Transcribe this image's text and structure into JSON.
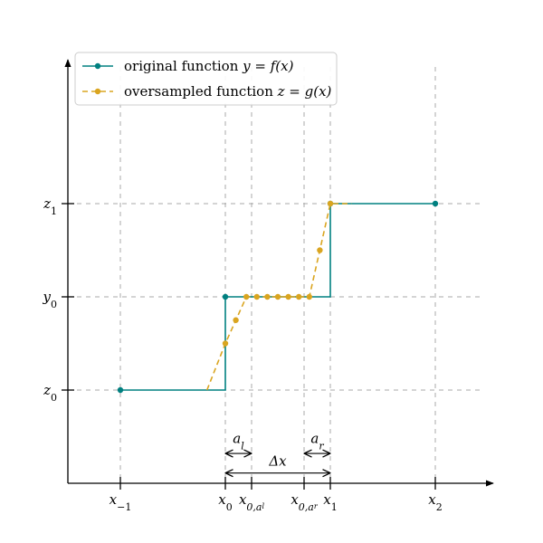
{
  "chart_data": {
    "type": "line",
    "xlim": [
      -2.0,
      5.6
    ],
    "ylim": [
      -1.0,
      3.0
    ],
    "grid": true,
    "legend_position": "top-left",
    "x_ticks": [
      {
        "value": -1.0,
        "base": "x",
        "sub": "−1",
        "subsub": ""
      },
      {
        "value": 1.0,
        "base": "x",
        "sub": "0",
        "subsub": ""
      },
      {
        "value": 1.5,
        "base": "x",
        "sub": "0,a",
        "subsub": "l"
      },
      {
        "value": 2.5,
        "base": "x",
        "sub": "0,a",
        "subsub": "r"
      },
      {
        "value": 3.0,
        "base": "x",
        "sub": "1",
        "subsub": ""
      },
      {
        "value": 5.0,
        "base": "x",
        "sub": "2",
        "subsub": ""
      }
    ],
    "y_ticks": [
      {
        "value": 0.0,
        "base": "z",
        "sub": "0"
      },
      {
        "value": 1.0,
        "base": "y",
        "sub": "0"
      },
      {
        "value": 2.0,
        "base": "z",
        "sub": "1"
      }
    ],
    "series": [
      {
        "name": "original function",
        "formula": "y = f(x)",
        "color": "#008080",
        "line_style": "solid",
        "line_x": [
          -1.0,
          1.0,
          1.0,
          3.0,
          3.0,
          5.0
        ],
        "line_y": [
          0.0,
          0.0,
          1.0,
          1.0,
          2.0,
          2.0
        ],
        "points_x": [
          -1.0,
          1.0,
          3.0,
          5.0
        ],
        "points_y": [
          0.0,
          1.0,
          2.0,
          2.0
        ]
      },
      {
        "name": "oversampled function",
        "formula": "z = g(x)",
        "color": "#daa520",
        "line_style": "dashed",
        "line_x": [
          0.65,
          1.0,
          1.2,
          1.4,
          1.6,
          1.8,
          2.0,
          2.2,
          2.4,
          2.6,
          2.8,
          3.0,
          3.4
        ],
        "line_y": [
          0.0,
          0.5,
          0.75,
          1.0,
          1.0,
          1.0,
          1.0,
          1.0,
          1.0,
          1.0,
          1.5,
          2.0,
          2.0
        ],
        "points_x": [
          1.0,
          1.2,
          1.4,
          1.6,
          1.8,
          2.0,
          2.2,
          2.4,
          2.6,
          2.8,
          3.0
        ],
        "points_y": [
          0.5,
          0.75,
          1.0,
          1.0,
          1.0,
          1.0,
          1.0,
          1.0,
          1.0,
          1.5,
          2.0
        ]
      }
    ],
    "annotations": [
      {
        "type": "double-arrow",
        "from": 1.0,
        "to": 1.5,
        "y": -0.68,
        "label_base": "a",
        "label_sub": "l",
        "label_y": -0.52
      },
      {
        "type": "double-arrow",
        "from": 2.5,
        "to": 3.0,
        "y": -0.68,
        "label_base": "a",
        "label_sub": "r",
        "label_y": -0.52
      },
      {
        "type": "double-arrow",
        "from": 1.0,
        "to": 3.0,
        "y": -0.89,
        "label_base": "Δx",
        "label_sub": "",
        "label_y": -0.76
      }
    ]
  }
}
